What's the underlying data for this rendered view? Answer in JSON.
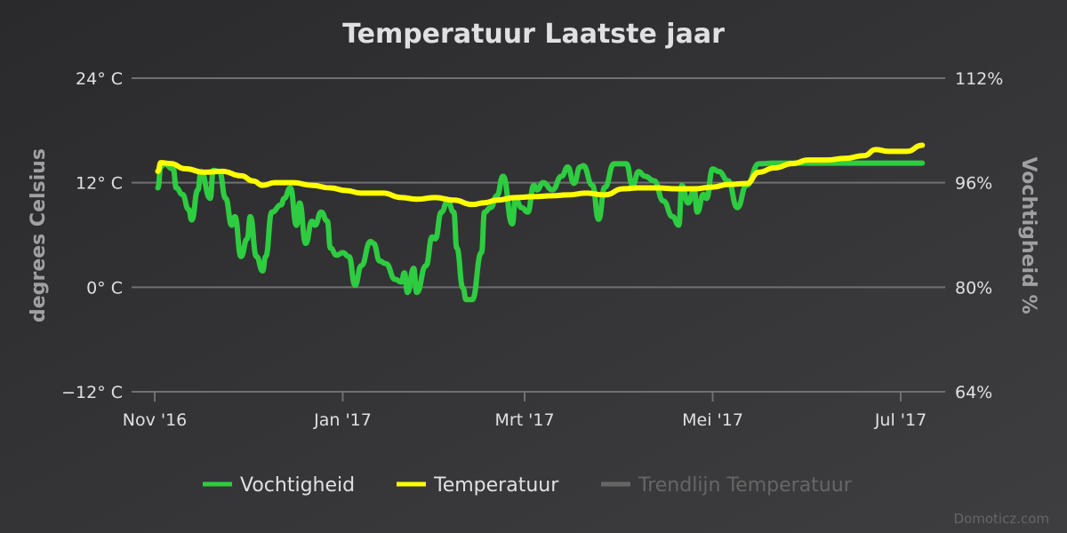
{
  "chart_data": {
    "type": "line",
    "title": "Temperatuur Laatste jaar",
    "xlabel": "",
    "ylabel": "degrees Celsius",
    "ylabel_right": "Vochtigheid %",
    "x_unit": "days since 2016-11-01",
    "xlim": [
      0,
      250
    ],
    "ylim": [
      -12,
      24
    ],
    "ylim_right": [
      64,
      112
    ],
    "grid": true,
    "x_ticks": [
      {
        "label": "Nov '16",
        "value": 0
      },
      {
        "label": "Jan '17",
        "value": 61
      },
      {
        "label": "Mrt '17",
        "value": 120
      },
      {
        "label": "Mei '17",
        "value": 181
      },
      {
        "label": "Jul '17",
        "value": 242
      }
    ],
    "y_ticks_left": [
      {
        "label": "24° C",
        "value": 24
      },
      {
        "label": "12° C",
        "value": 12
      },
      {
        "label": "0° C",
        "value": 0
      },
      {
        "label": "−12° C",
        "value": -12
      }
    ],
    "y_ticks_right": [
      {
        "label": "112%",
        "value": 112
      },
      {
        "label": "96%",
        "value": 96
      },
      {
        "label": "80%",
        "value": 80
      },
      {
        "label": "64%",
        "value": 64
      }
    ],
    "legend_position": "bottom",
    "series": [
      {
        "name": "Vochtigheid",
        "color": "#2ecc40",
        "axis": "right",
        "visible": true,
        "x": [
          1,
          2,
          3,
          6,
          7,
          9,
          11,
          12,
          14,
          15,
          18,
          19,
          21,
          23,
          25,
          26,
          28,
          30,
          31,
          33,
          35,
          36,
          38,
          41,
          42,
          44,
          46,
          47,
          49,
          51,
          52,
          54,
          56,
          57,
          59,
          61,
          63,
          65,
          67,
          70,
          71,
          73,
          75,
          78,
          80,
          81,
          82,
          84,
          85,
          88,
          90,
          91,
          93,
          95,
          97,
          98,
          100,
          101,
          103,
          106,
          107,
          109,
          111,
          113,
          116,
          117,
          119,
          121,
          123,
          124,
          126,
          129,
          132,
          134,
          136,
          138,
          139,
          142,
          144,
          146,
          149,
          153,
          155,
          157,
          159,
          162,
          165,
          168,
          170,
          171,
          173,
          175,
          176,
          178,
          179,
          181,
          183,
          186,
          189,
          192,
          196,
          201,
          249
        ],
        "values": [
          95.2,
          98.4,
          98.9,
          98.1,
          95.2,
          94.2,
          91.9,
          90.3,
          94.9,
          97.7,
          93.6,
          97.9,
          97.7,
          93.6,
          89.5,
          90.8,
          84.7,
          87.4,
          90.8,
          84.7,
          82.5,
          84.7,
          91.5,
          92.6,
          93.6,
          95.2,
          89.5,
          92.9,
          86.7,
          90.1,
          89.5,
          91.5,
          90.1,
          86.0,
          84.9,
          85.3,
          84.7,
          80.3,
          83.3,
          87.0,
          86.7,
          84.0,
          83.6,
          81.2,
          80.8,
          82.2,
          79.2,
          82.9,
          79.2,
          83.3,
          87.7,
          87.4,
          91.5,
          93.2,
          91.5,
          86.0,
          79.9,
          78.1,
          78.1,
          85.3,
          91.5,
          92.2,
          94.0,
          97.0,
          89.7,
          93.6,
          92.2,
          91.5,
          95.6,
          94.9,
          96.0,
          94.9,
          97.0,
          98.4,
          95.9,
          98.4,
          98.6,
          95.6,
          90.4,
          95.3,
          98.9,
          98.9,
          95.6,
          97.7,
          97.0,
          96.3,
          93.2,
          90.8,
          89.5,
          95.6,
          92.9,
          94.9,
          91.5,
          94.2,
          93.6,
          98.1,
          97.7,
          96.3,
          92.2,
          95.6,
          98.9,
          99.0,
          99.0
        ]
      },
      {
        "name": "Temperatuur",
        "color": "#ffff00",
        "axis": "left",
        "visible": true,
        "x": [
          1,
          2,
          5,
          10,
          16,
          22,
          28,
          32,
          35,
          39,
          45,
          51,
          57,
          62,
          67,
          74,
          80,
          85,
          91,
          97,
          103,
          107,
          111,
          117,
          123,
          129,
          134,
          140,
          146,
          152,
          157,
          163,
          169,
          175,
          181,
          186,
          192,
          196,
          201,
          207,
          212,
          218,
          224,
          230,
          234,
          238,
          244,
          249
        ],
        "values": [
          13.3,
          14.3,
          14.2,
          13.6,
          13.2,
          13.3,
          12.8,
          12.2,
          11.7,
          12.0,
          12.0,
          11.7,
          11.4,
          11.1,
          10.8,
          10.8,
          10.3,
          10.1,
          10.3,
          10.0,
          9.5,
          9.7,
          10.0,
          10.3,
          10.4,
          10.5,
          10.6,
          10.8,
          10.6,
          11.3,
          11.4,
          11.4,
          11.3,
          11.3,
          11.5,
          11.8,
          11.9,
          13.2,
          13.7,
          14.2,
          14.6,
          14.6,
          14.8,
          15.1,
          15.8,
          15.6,
          15.6,
          16.3
        ]
      },
      {
        "name": "Trendlijn Temperatuur",
        "color": "#666666",
        "axis": "left",
        "visible": false,
        "x": [],
        "values": []
      }
    ]
  },
  "credits": "Domoticz.com"
}
